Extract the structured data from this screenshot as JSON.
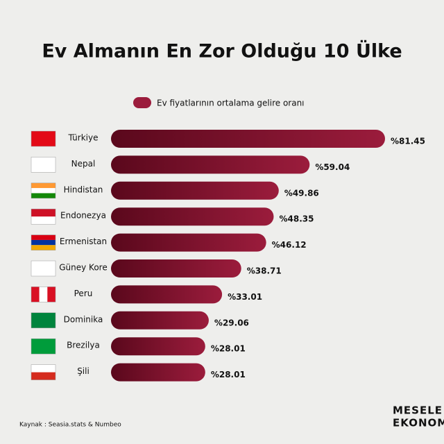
{
  "chart_data": {
    "type": "hbar",
    "title": "Ev Almanın En Zor Olduğu 10 Ülke",
    "legend": "Ev fiyatlarının ortalama gelire oranı",
    "categories": [
      "Türkiye",
      "Nepal",
      "Hindistan",
      "Endonezya",
      "Ermenistan",
      "Güney Kore",
      "Peru",
      "Dominika",
      "Brezilya",
      "Şili"
    ],
    "values": [
      81.45,
      59.04,
      49.86,
      48.35,
      46.12,
      38.71,
      33.01,
      29.06,
      28.01,
      28.01
    ],
    "value_labels": [
      "%81.45",
      "%59.04",
      "%49.86",
      "%48.35",
      "%46.12",
      "%38.71",
      "%33.01",
      "%29.06",
      "%28.01",
      "%28.01"
    ],
    "color": "#9b1c3c",
    "source": "Kaynak : Seasia.stats & Numbeo",
    "brand": [
      "MESELE",
      "EKONOMI"
    ]
  }
}
